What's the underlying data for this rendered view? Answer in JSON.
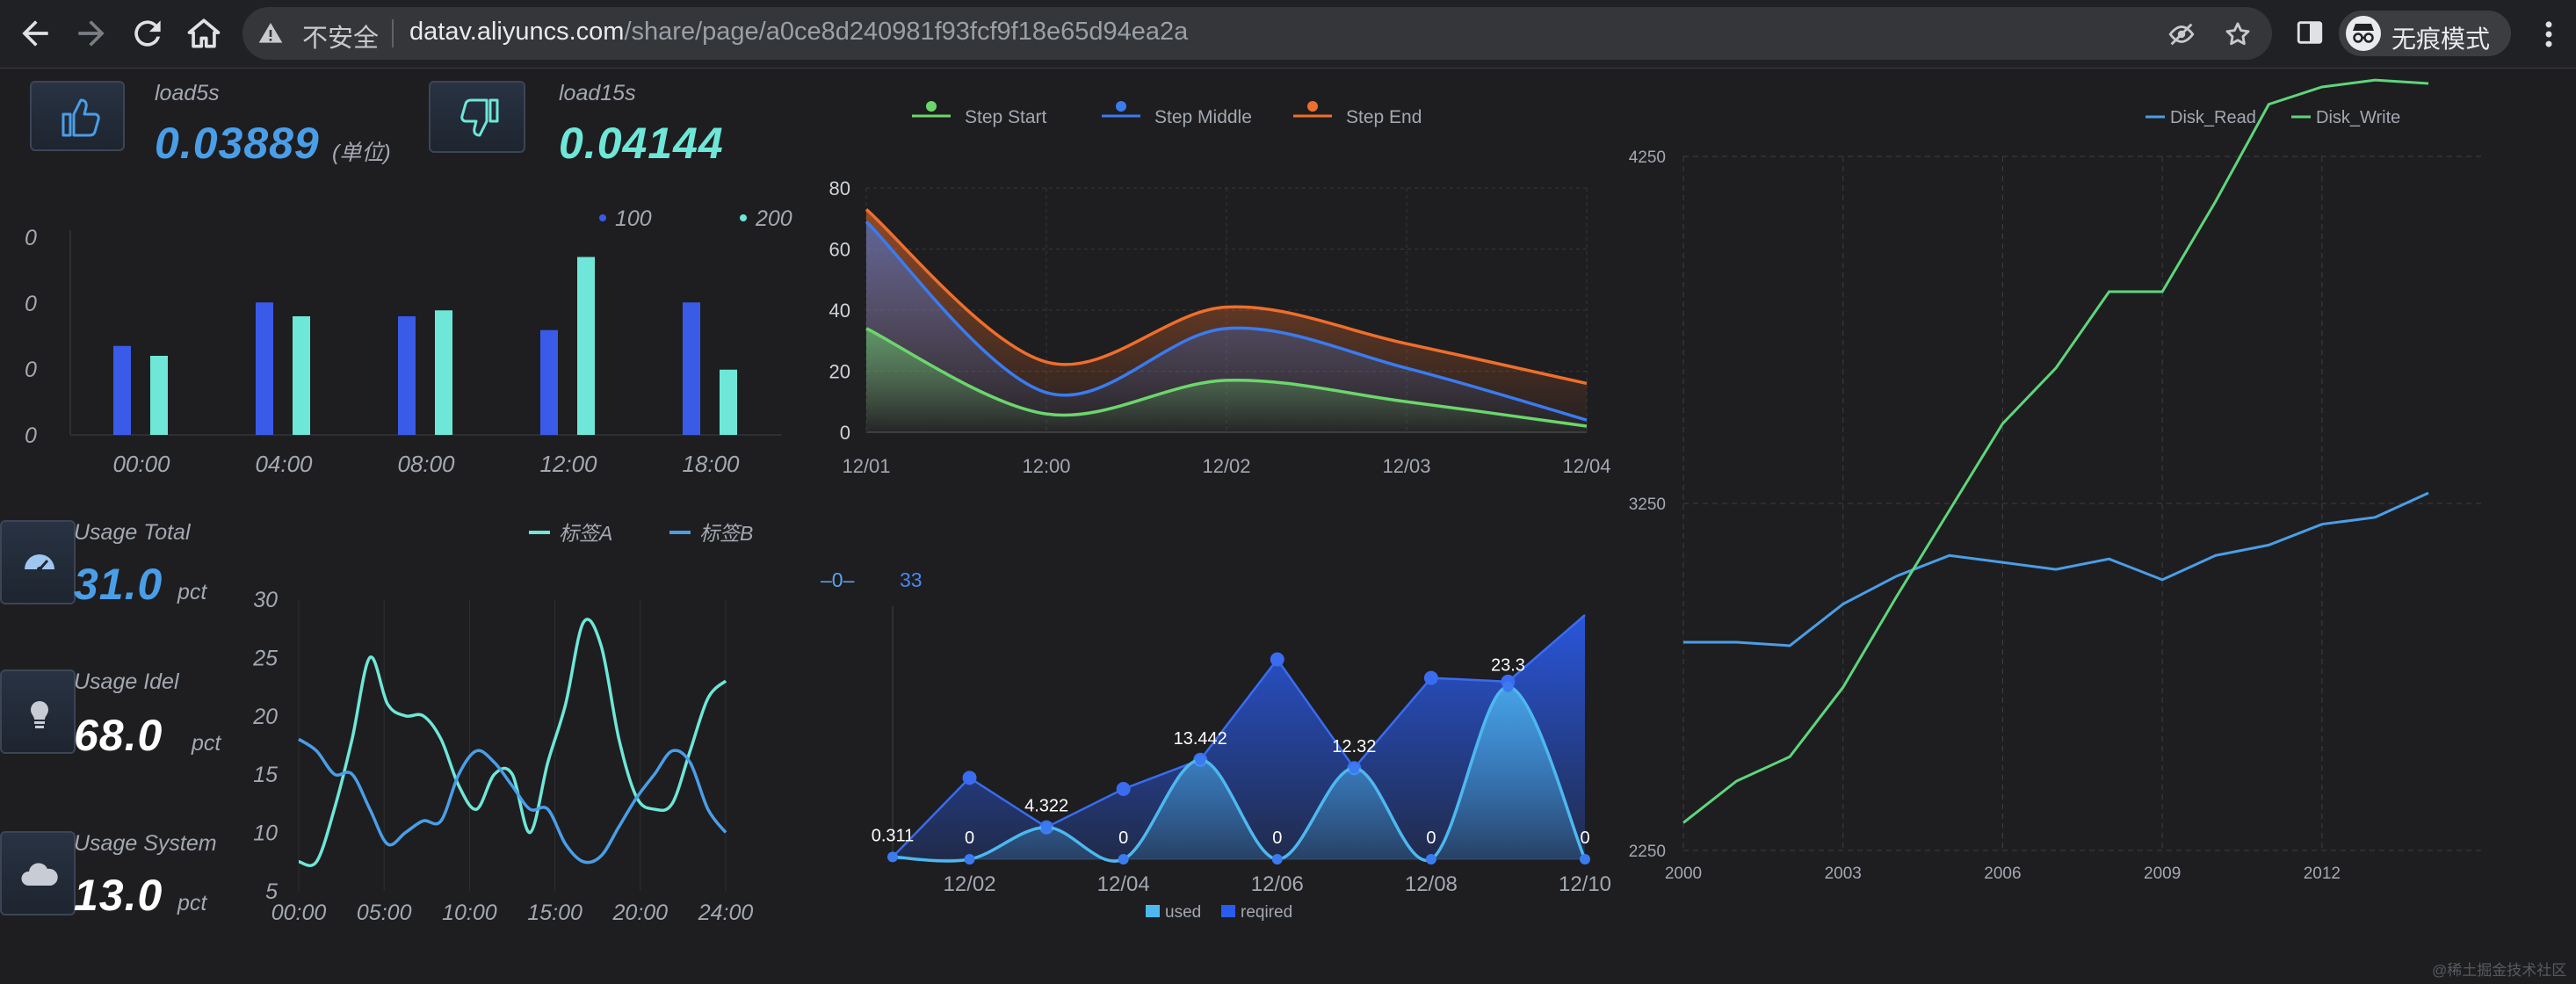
{
  "browser": {
    "insecure_label": "不安全",
    "url_host": "datav.aliyuncs.com",
    "url_path": "/share/page/a0ce8d240981f93fcf9f18e65d94ea2a",
    "profile_label": "无痕模式",
    "icons": [
      "back-arrow-icon",
      "forward-arrow-icon",
      "reload-icon",
      "home-icon",
      "warning-icon",
      "eye-off-icon",
      "star-icon",
      "sidepanel-icon",
      "incognito-icon",
      "more-vert-icon"
    ]
  },
  "stats": {
    "load5s": {
      "label": "load5s",
      "value": "0.03889",
      "unit": "(单位)",
      "icon": "thumbs-up-icon",
      "color": "#4a9ee8"
    },
    "load15s": {
      "label": "load15s",
      "value": "0.04144",
      "icon": "thumbs-down-icon",
      "color": "#6ee7d8"
    },
    "usage_total": {
      "label": "Usage Total",
      "value": "31.0",
      "unit": "pct",
      "icon": "speedometer-icon",
      "color": "#4a9ee8"
    },
    "usage_idel": {
      "label": "Usage Idel",
      "value": "68.0",
      "unit": "pct",
      "icon": "lightbulb-icon",
      "color": "#ffffff"
    },
    "usage_system": {
      "label": "Usage System",
      "value": "13.0",
      "unit": "pct",
      "icon": "cloud-icon",
      "color": "#ffffff"
    }
  },
  "watermark": "@稀土掘金技术社区",
  "chart_data": [
    {
      "id": "bar",
      "type": "bar",
      "categories": [
        "00:00",
        "04:00",
        "08:00",
        "12:00",
        "18:00"
      ],
      "yticks": [
        "0",
        "0",
        "0",
        "0"
      ],
      "series": [
        {
          "name": "100",
          "color": "#3a5be8",
          "values": [
            0.45,
            0.67,
            0.6,
            0.53,
            0.67
          ]
        },
        {
          "name": "200",
          "color": "#6ee7d8",
          "values": [
            0.4,
            0.6,
            0.63,
            0.9,
            0.33
          ]
        }
      ],
      "ylim": [
        0,
        1
      ],
      "legend": "top-right"
    },
    {
      "id": "area3",
      "type": "area",
      "categories": [
        "12/01",
        "12:00",
        "12/02",
        "12/03",
        "12/04"
      ],
      "ylim": [
        0,
        80
      ],
      "yticks": [
        0,
        20,
        40,
        60,
        80
      ],
      "series": [
        {
          "name": "Step Start",
          "color": "#6cd66c",
          "values": [
            [
              0,
              34
            ],
            [
              1,
              6
            ],
            [
              2,
              17
            ],
            [
              3,
              10
            ],
            [
              4,
              2
            ]
          ]
        },
        {
          "name": "Step Middle",
          "color": "#3a7bf0",
          "values": [
            [
              0,
              69
            ],
            [
              1,
              13
            ],
            [
              2,
              34
            ],
            [
              3,
              21
            ],
            [
              4,
              4
            ]
          ]
        },
        {
          "name": "Step End",
          "color": "#f06e2c",
          "values": [
            [
              0,
              73
            ],
            [
              1,
              23
            ],
            [
              2,
              41
            ],
            [
              3,
              29
            ],
            [
              4,
              16
            ]
          ]
        }
      ],
      "legend": "top"
    },
    {
      "id": "disk",
      "type": "line",
      "x": [
        2000,
        2001,
        2002,
        2003,
        2004,
        2005,
        2006,
        2007,
        2008,
        2009,
        2010,
        2011,
        2012,
        2013,
        2014
      ],
      "xticks": [
        2000,
        2003,
        2006,
        2009,
        2012
      ],
      "ylim": [
        2250,
        4250
      ],
      "yticks": [
        2250,
        3250,
        4250
      ],
      "series": [
        {
          "name": "Disk_Read",
          "color": "#4a9ee8",
          "values": [
            2850,
            2850,
            2840,
            2960,
            3040,
            3100,
            3080,
            3060,
            3090,
            3030,
            3100,
            3130,
            3190,
            3210,
            3280
          ]
        },
        {
          "name": "Disk_Write",
          "color": "#5ed67c",
          "values": [
            2330,
            2450,
            2520,
            2720,
            2980,
            3230,
            3480,
            3640,
            3860,
            3860,
            4120,
            4400,
            4450,
            4470,
            4460
          ]
        }
      ],
      "legend": "top-right"
    },
    {
      "id": "usage_lines",
      "type": "line",
      "x_labels": [
        "00:00",
        "05:00",
        "10:00",
        "15:00",
        "20:00",
        "24:00"
      ],
      "ylim": [
        5,
        30
      ],
      "yticks": [
        5,
        10,
        15,
        20,
        25,
        30
      ],
      "series": [
        {
          "name": "标签A",
          "color": "#6ee7d8",
          "values": [
            [
              0,
              7.5
            ],
            [
              1,
              7.5
            ],
            [
              2,
              12
            ],
            [
              3,
              18
            ],
            [
              4,
              25
            ],
            [
              5,
              21
            ],
            [
              6,
              20
            ],
            [
              7,
              20
            ],
            [
              8,
              18
            ],
            [
              9,
              14
            ],
            [
              10,
              12
            ],
            [
              11,
              15
            ],
            [
              12,
              15
            ],
            [
              13,
              10
            ],
            [
              14,
              16
            ],
            [
              15,
              21
            ],
            [
              16,
              28
            ],
            [
              17,
              26
            ],
            [
              18,
              18
            ],
            [
              19,
              13
            ],
            [
              20,
              12
            ],
            [
              21,
              12.5
            ],
            [
              22,
              17
            ],
            [
              23,
              21.5
            ],
            [
              24,
              23
            ]
          ]
        },
        {
          "name": "标签B",
          "color": "#4a9ee8",
          "values": [
            [
              0,
              18
            ],
            [
              1,
              17
            ],
            [
              2,
              15
            ],
            [
              3,
              15
            ],
            [
              4,
              12
            ],
            [
              5,
              9
            ],
            [
              6,
              10
            ],
            [
              7,
              11
            ],
            [
              8,
              11
            ],
            [
              9,
              15
            ],
            [
              10,
              17
            ],
            [
              11,
              16
            ],
            [
              12,
              14
            ],
            [
              13,
              12
            ],
            [
              14,
              12
            ],
            [
              15,
              9
            ],
            [
              16,
              7.5
            ],
            [
              17,
              8
            ],
            [
              18,
              10.5
            ],
            [
              19,
              13
            ],
            [
              20,
              15
            ],
            [
              21,
              17
            ],
            [
              22,
              16
            ],
            [
              23,
              12
            ],
            [
              24,
              10
            ]
          ]
        }
      ],
      "legend": "top-right"
    },
    {
      "id": "used_reqired",
      "type": "area",
      "categories": [
        "12/01",
        "12/02",
        "12/03",
        "12/04",
        "12/05",
        "12/06",
        "12/07",
        "12/08",
        "12/09",
        "12/10"
      ],
      "xticks": [
        "12/02",
        "12/04",
        "12/06",
        "12/08",
        "12/10"
      ],
      "ylim": [
        0,
        33
      ],
      "series": [
        {
          "name": "used",
          "color": "#4db8f0",
          "values": [
            0.311,
            0,
            4.322,
            0,
            13.442,
            0,
            12.32,
            0,
            23.3,
            0
          ],
          "labels": [
            "0.311",
            "0",
            "4.322",
            "0",
            "13.442",
            "0",
            "12.32",
            "0",
            "23.3",
            "0"
          ]
        },
        {
          "name": "reqired",
          "color": "#2a5cf0",
          "values": [
            0.311,
            11,
            4.322,
            9.5,
            13.442,
            27,
            12.32,
            24.5,
            24,
            33
          ]
        }
      ],
      "label_0": "0",
      "label_max": "33",
      "legend": "bottom"
    }
  ]
}
